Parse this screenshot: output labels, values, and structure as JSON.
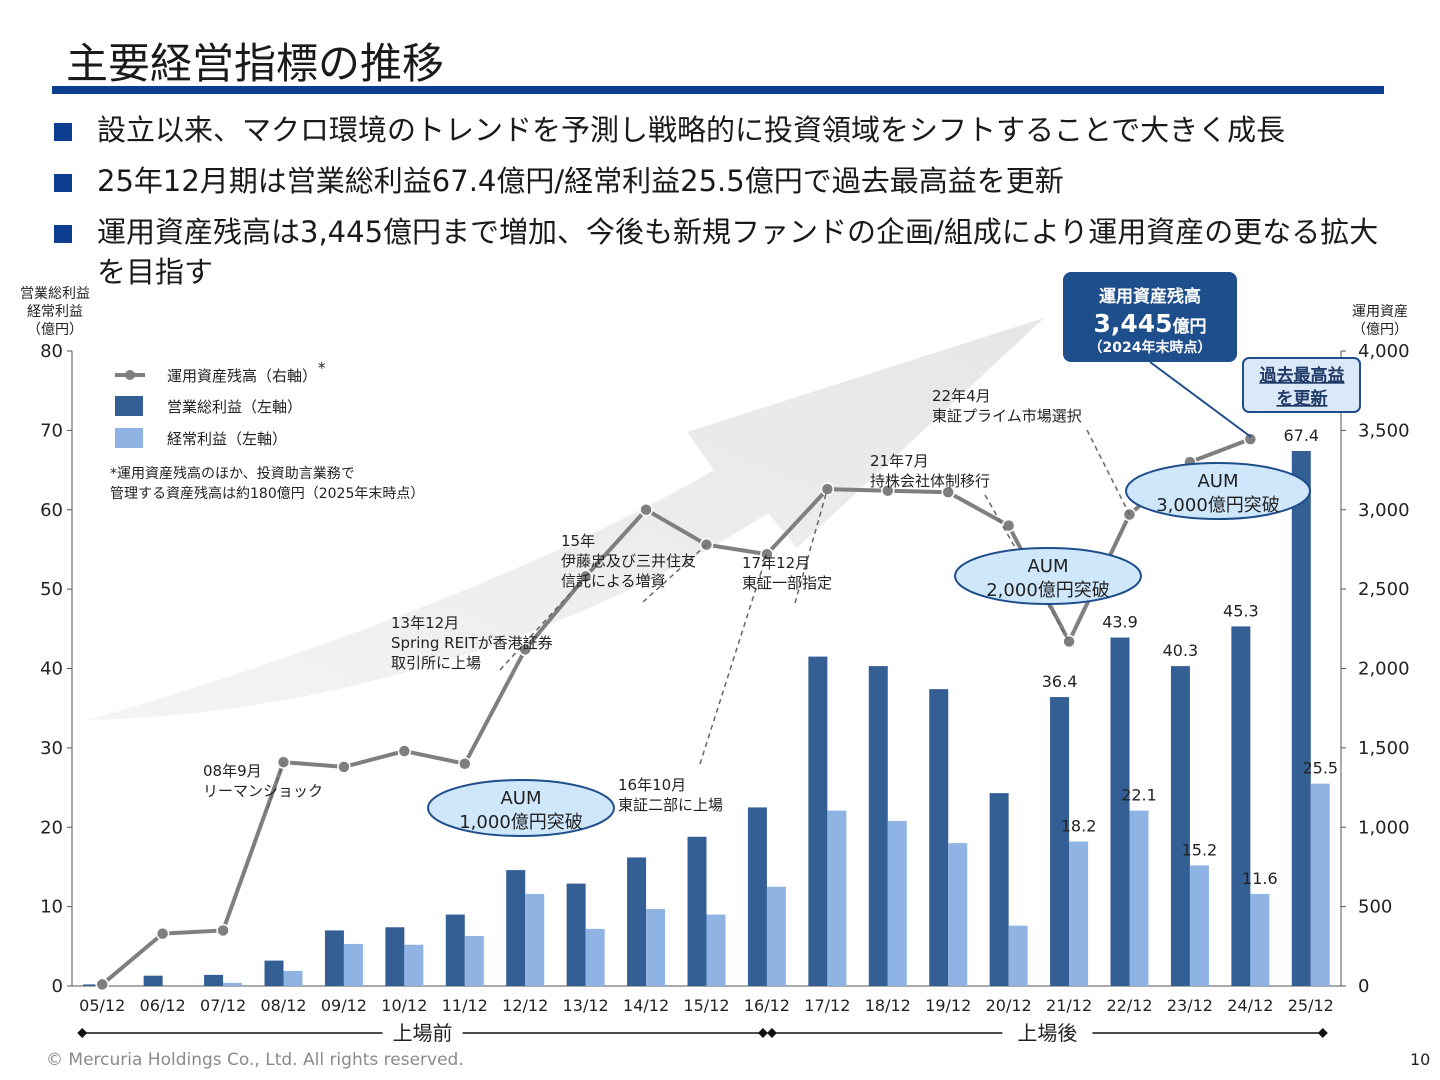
{
  "title": "主要経営指標の推移",
  "bullets": [
    "設立以来、マクロ環境のトレンドを予測し戦略的に投資領域をシフトすることで大きく成長",
    "25年12月期は営業総利益67.4億円/経常利益25.5億円で過去最高益を更新",
    "運用資産残高は3,445億円まで増加、今後も新規ファンドの企画/組成により運用資産の更なる拡大を目指す"
  ],
  "chart_data": {
    "type": "bar",
    "categories": [
      "05/12",
      "06/12",
      "07/12",
      "08/12",
      "09/12",
      "10/12",
      "11/12",
      "12/12",
      "13/12",
      "14/12",
      "15/12",
      "16/12",
      "17/12",
      "18/12",
      "19/12",
      "20/12",
      "21/12",
      "22/12",
      "23/12",
      "24/12",
      "25/12"
    ],
    "left_axis_title": [
      "営業総利益",
      "経常利益",
      "（億円）"
    ],
    "right_axis_title": [
      "運用資産",
      "（億円）"
    ],
    "ylim_left": [
      0,
      80
    ],
    "ylim_right": [
      0,
      4000
    ],
    "yticks_left": [
      "0",
      "10",
      "20",
      "30",
      "40",
      "50",
      "60",
      "70",
      "80"
    ],
    "yticks_right": [
      "0",
      "500",
      "1,000",
      "1,500",
      "2,000",
      "2,500",
      "3,000",
      "3,500",
      "4,000"
    ],
    "series": [
      {
        "name": "営業総利益（左軸）",
        "type": "bar",
        "axis": "left",
        "color": "#345f94",
        "values": [
          0.2,
          1.3,
          1.4,
          3.2,
          7.0,
          7.4,
          9.0,
          14.6,
          12.9,
          16.2,
          18.8,
          22.5,
          41.5,
          40.3,
          37.4,
          24.3,
          36.4,
          43.9,
          40.3,
          45.3,
          67.4
        ]
      },
      {
        "name": "経常利益（左軸）",
        "type": "bar",
        "axis": "left",
        "color": "#8fb3e3",
        "values": [
          0,
          0,
          0.4,
          1.9,
          5.3,
          5.2,
          6.3,
          11.6,
          7.2,
          9.7,
          9.0,
          12.5,
          22.1,
          20.8,
          18.0,
          7.6,
          18.2,
          22.1,
          15.2,
          11.6,
          25.5
        ]
      },
      {
        "name": "運用資産残高（右軸）",
        "type": "line",
        "axis": "right",
        "color": "#7f7f7f",
        "values": [
          10,
          330,
          350,
          1410,
          1380,
          1480,
          1400,
          2120,
          2580,
          3000,
          2780,
          2720,
          3130,
          3120,
          3110,
          2900,
          2170,
          2970,
          3300,
          3445,
          null
        ]
      }
    ],
    "data_labels": [
      {
        "series": 0,
        "index": 16,
        "text": "36.4"
      },
      {
        "series": 0,
        "index": 17,
        "text": "43.9"
      },
      {
        "series": 0,
        "index": 18,
        "text": "40.3"
      },
      {
        "series": 0,
        "index": 19,
        "text": "45.3"
      },
      {
        "series": 0,
        "index": 20,
        "text": "67.4"
      },
      {
        "series": 1,
        "index": 16,
        "text": "18.2"
      },
      {
        "series": 1,
        "index": 17,
        "text": "22.1"
      },
      {
        "series": 1,
        "index": 18,
        "text": "15.2"
      },
      {
        "series": 1,
        "index": 19,
        "text": "11.6"
      },
      {
        "series": 1,
        "index": 20,
        "text": "25.5"
      }
    ],
    "legend": {
      "placement": "top-left",
      "items": [
        "運用資産残高（右軸）",
        "営業総利益（左軸）",
        "経常利益（左軸）"
      ],
      "star": "*",
      "note": [
        "*運用資産残高のほか、投資助言業務で",
        "管理する資産残高は約180億円（2025年末時点）"
      ]
    },
    "events": [
      {
        "index": 3,
        "lines": [
          "08年9月",
          "リーマンショック"
        ]
      },
      {
        "index": 8,
        "lines": [
          "13年12月",
          "Spring REITが香港証券",
          "取引所に上場"
        ]
      },
      {
        "index": 10,
        "lines": [
          "15年",
          "伊藤忠及び三井住友",
          "信託による増資"
        ]
      },
      {
        "index": 11,
        "lines": [
          "16年10月",
          "東証二部に上場"
        ]
      },
      {
        "index": 12,
        "lines": [
          "17年12月",
          "東証一部指定"
        ]
      },
      {
        "index": 16,
        "lines": [
          "21年7月",
          "持株会社体制移行"
        ]
      },
      {
        "index": 17,
        "lines": [
          "22年4月",
          "東証プライム市場選択"
        ]
      }
    ],
    "aum_badges": [
      {
        "lines": [
          "AUM",
          "1,000億円突破"
        ]
      },
      {
        "lines": [
          "AUM",
          "2,000億円突破"
        ]
      },
      {
        "lines": [
          "AUM",
          "3,000億円突破"
        ]
      }
    ],
    "callout": {
      "line1": "運用資産残高",
      "value": "3,445",
      "unit": "億円",
      "line3": "（2024年末時点）"
    },
    "record_box": [
      "過去最高益",
      "を更新"
    ],
    "periods": [
      {
        "label": "上場前",
        "from": 0,
        "to": 11
      },
      {
        "label": "上場後",
        "from": 11,
        "to": 20
      }
    ],
    "accent_color": "#0b3d91",
    "grid": false
  },
  "footer": "© Mercuria Holdings Co., Ltd. All rights reserved.",
  "page_number": "10"
}
